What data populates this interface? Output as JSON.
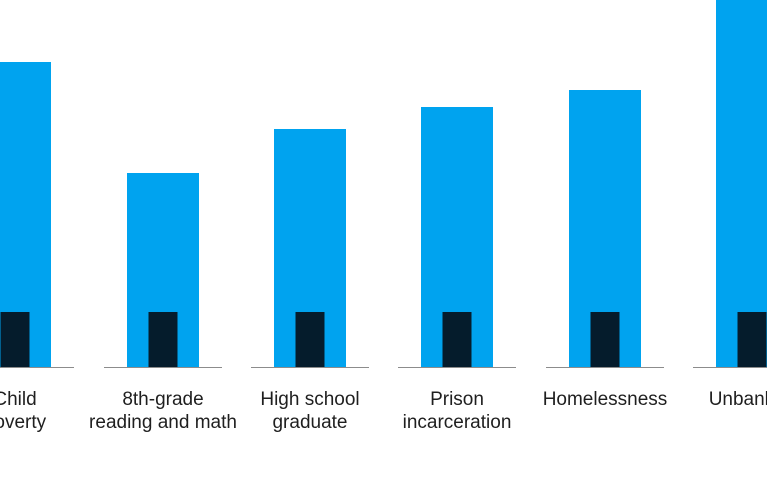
{
  "chart_data": {
    "type": "bar",
    "categories": [
      [
        "Child",
        "poverty"
      ],
      [
        "8th-grade",
        "reading and math"
      ],
      [
        "High school",
        "graduate"
      ],
      [
        "Prison",
        "incarceration"
      ],
      [
        "Homelessness"
      ],
      [
        "Unbanked"
      ]
    ],
    "series": [
      {
        "values": [
          305,
          194,
          238,
          260,
          277,
          400
        ]
      },
      {
        "values": [
          55,
          55,
          55,
          55,
          55,
          55
        ]
      }
    ],
    "colors": {
      "series_1": "#00a3ef",
      "series_2": "#051c2c",
      "baseline": "#8c8c8c"
    },
    "title": "",
    "xlabel": "",
    "ylabel": "",
    "ylim": [
      0,
      400
    ],
    "grid": false,
    "legend": "none"
  }
}
